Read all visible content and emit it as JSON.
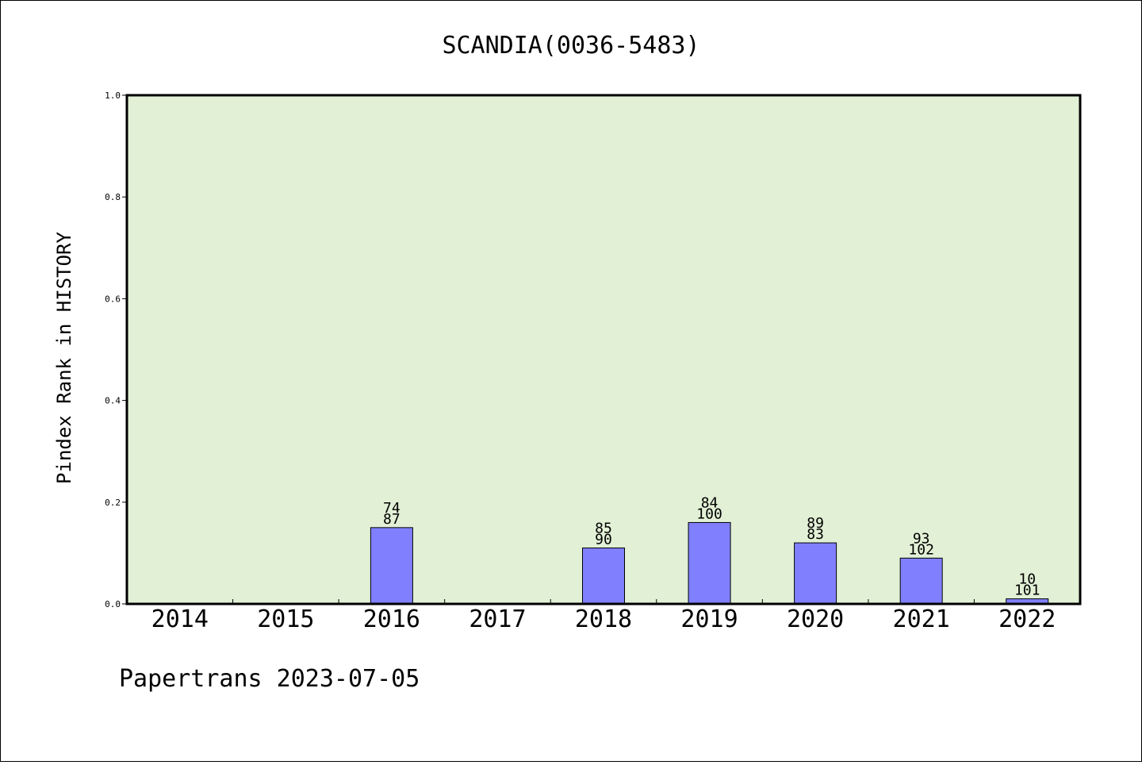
{
  "chart_data": {
    "type": "bar",
    "title": "SCANDIA(0036-5483)",
    "ylabel": "Pindex Rank in HISTORY",
    "xlabel": "",
    "ylim": [
      0,
      1.0
    ],
    "yticks": [
      "0.0",
      "0.2",
      "0.4",
      "0.6",
      "0.8",
      "1.0"
    ],
    "categories": [
      "2014",
      "2015",
      "2016",
      "2017",
      "2018",
      "2019",
      "2020",
      "2021",
      "2022"
    ],
    "values": [
      0,
      0,
      0.15,
      0,
      0.11,
      0.16,
      0.12,
      0.09,
      0.01
    ],
    "labels_top": [
      "",
      "",
      "74",
      "",
      "85",
      "84",
      "89",
      "93",
      "10"
    ],
    "labels_bottom": [
      "",
      "",
      "87",
      "",
      "90",
      "100",
      "83",
      "102",
      "101"
    ],
    "grid": false,
    "legend": "none"
  },
  "colors": {
    "plot_background": "#e2f0d6",
    "bar_fill": "#8080ff",
    "bar_stroke": "#000000",
    "page_background": "#ffffff"
  },
  "footer": "Papertrans 2023-07-05"
}
